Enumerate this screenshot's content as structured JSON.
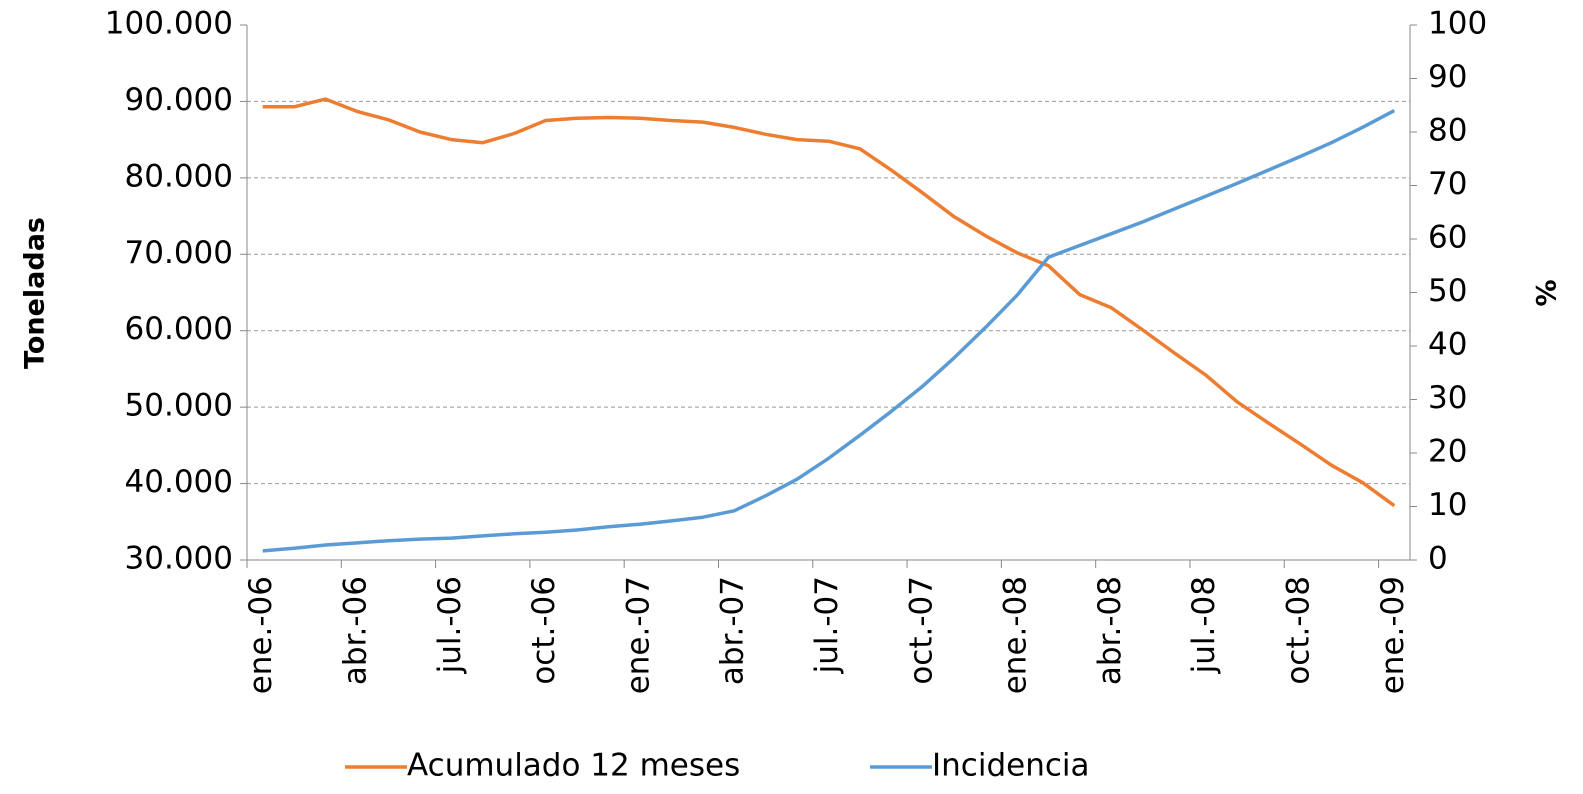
{
  "chart_data": {
    "type": "line",
    "ylabel": "Toneladas",
    "y2label": "%",
    "categories": [
      "ene.-06",
      null,
      null,
      "abr.-06",
      null,
      null,
      "jul.-06",
      null,
      null,
      "oct.-06",
      null,
      null,
      "ene.-07",
      null,
      null,
      "abr.-07",
      null,
      null,
      "jul.-07",
      null,
      null,
      "oct.-07",
      null,
      null,
      "ene.-08",
      null,
      null,
      "abr.-08",
      null,
      null,
      "jul.-08",
      null,
      null,
      "oct.-08",
      null,
      null,
      "ene.-09"
    ],
    "series": [
      {
        "name": "Acumulado 12 meses",
        "color": "#ed7d31",
        "axis": "y",
        "values": [
          89300,
          89300,
          90300,
          88700,
          87600,
          86000,
          85000,
          84600,
          85800,
          87500,
          87800,
          87900,
          87800,
          87500,
          87300,
          86600,
          85700,
          85000,
          84800,
          83800,
          81000,
          78000,
          74900,
          72400,
          70200,
          68500,
          64700,
          63000,
          60100,
          57100,
          54200,
          50700,
          47900,
          45200,
          42400,
          40100,
          37100
        ]
      },
      {
        "name": "Incidencia",
        "color": "#5b9bd5",
        "axis": "y2",
        "values": [
          1.7,
          2.2,
          2.8,
          3.2,
          3.6,
          3.9,
          4.1,
          4.5,
          4.9,
          5.2,
          5.6,
          6.2,
          6.7,
          7.3,
          8.0,
          9.2,
          12.0,
          15.1,
          19.0,
          23.3,
          27.8,
          32.5,
          37.8,
          43.5,
          49.5,
          56.6,
          58.8,
          61.0,
          63.2,
          65.6,
          68.0,
          70.4,
          72.9,
          75.4,
          78.0,
          80.9,
          84.0
        ]
      }
    ],
    "ylim": [
      30000,
      100000
    ],
    "yticks": [
      {
        "value": 30000,
        "label": "30.000"
      },
      {
        "value": 40000,
        "label": "40.000"
      },
      {
        "value": 50000,
        "label": "50.000"
      },
      {
        "value": 60000,
        "label": "60.000"
      },
      {
        "value": 70000,
        "label": "70.000"
      },
      {
        "value": 80000,
        "label": "80.000"
      },
      {
        "value": 90000,
        "label": "90.000"
      },
      {
        "value": 100000,
        "label": "100.000"
      }
    ],
    "y2lim": [
      0,
      100
    ],
    "y2ticks": [
      0,
      10,
      20,
      30,
      40,
      50,
      60,
      70,
      80,
      90,
      100
    ],
    "grid": true,
    "legend": "bottom"
  }
}
